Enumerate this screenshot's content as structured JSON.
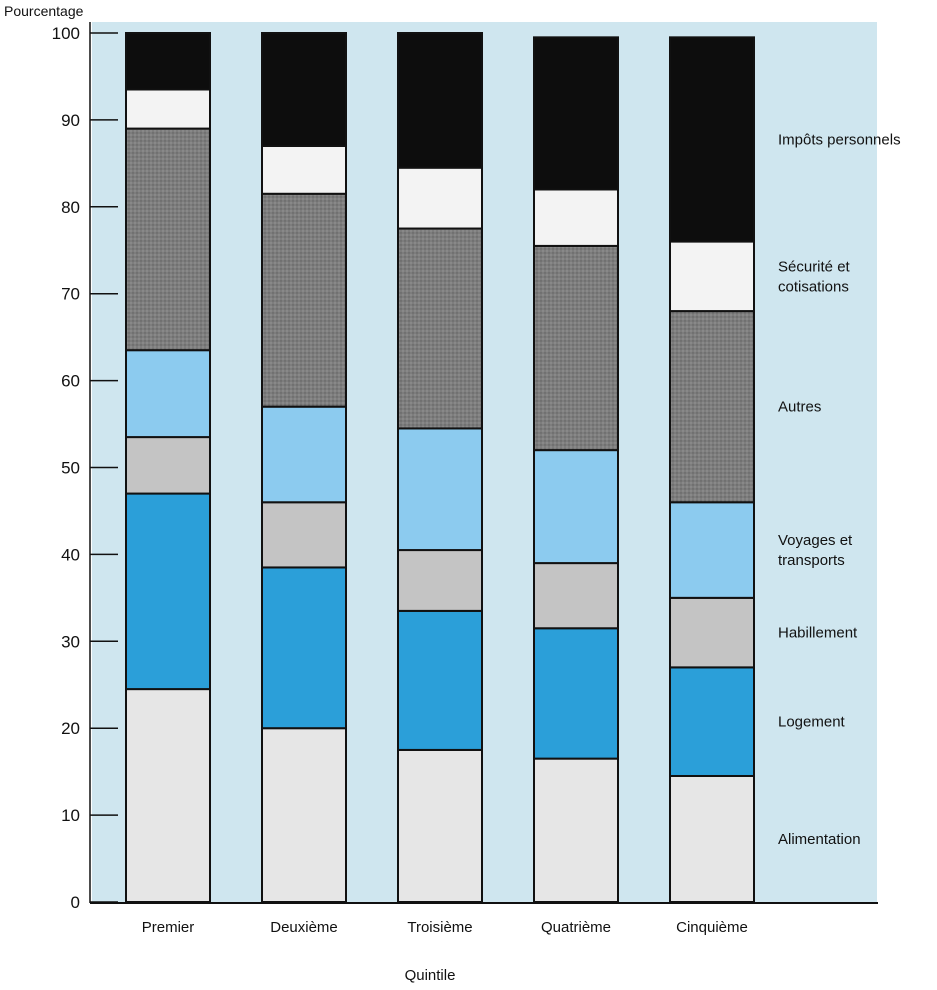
{
  "chart_data": {
    "type": "bar",
    "stacked": true,
    "title": "",
    "ylabel": "Pourcentage",
    "xlabel": "Quintile",
    "ylim": [
      0,
      100
    ],
    "yticks": [
      0,
      10,
      20,
      30,
      40,
      50,
      60,
      70,
      80,
      90,
      100
    ],
    "categories": [
      "Premier",
      "Deuxième",
      "Troisième",
      "Quatrième",
      "Cinquième"
    ],
    "series": [
      {
        "name": "Alimentation",
        "color": "#e6e6e6",
        "values": [
          24.5,
          20,
          17.5,
          16.5,
          14.5
        ]
      },
      {
        "name": "Logement",
        "color": "#2b9fd9",
        "values": [
          22.5,
          18.5,
          16,
          15,
          12.5
        ]
      },
      {
        "name": "Habillement",
        "color": "#c4c4c4",
        "values": [
          6.5,
          7.5,
          7,
          7.5,
          8
        ]
      },
      {
        "name": "Voyages et transports",
        "color": "#8ccbef",
        "values": [
          10,
          11,
          14,
          13,
          11
        ]
      },
      {
        "name": "Autres",
        "color": "#7d7d7d",
        "values": [
          25.5,
          24.5,
          23,
          23.5,
          22
        ]
      },
      {
        "name": "Sécurité et cotisations",
        "color": "#f3f3f3",
        "values": [
          4.5,
          5.5,
          7,
          6.5,
          8
        ]
      },
      {
        "name": "Impôts personnels",
        "color": "#0d0d0d",
        "values": [
          6.5,
          13,
          15.5,
          17.5,
          23.5
        ]
      }
    ],
    "legend_position": "right",
    "grid": false,
    "background_color": "#cfe6ef"
  }
}
